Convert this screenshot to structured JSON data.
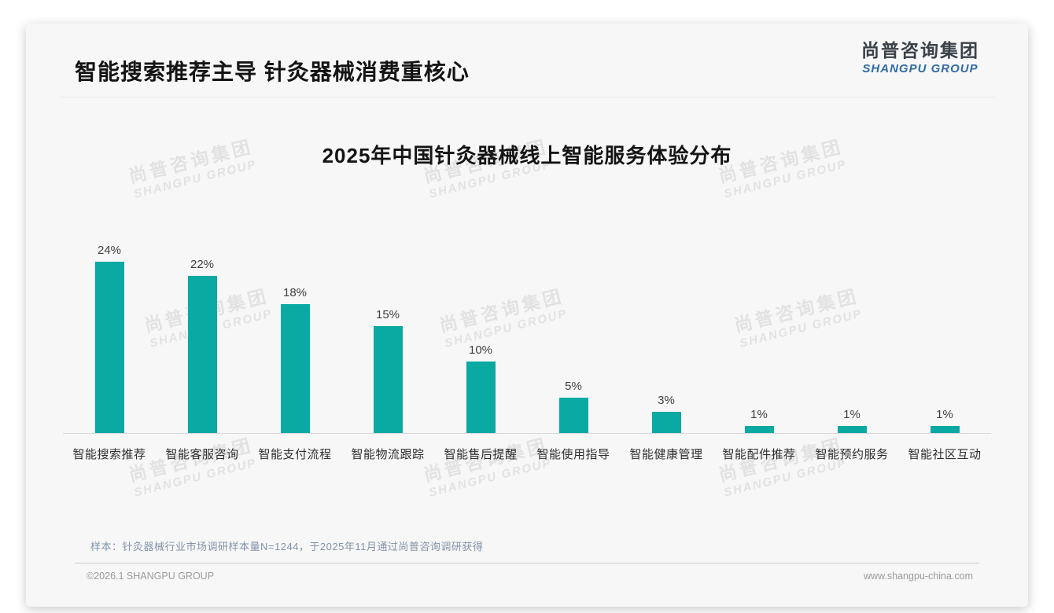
{
  "header": {
    "title": "智能搜索推荐主导 针灸器械消费重核心",
    "logo_cn": "尚普咨询集团",
    "logo_en": "SHANGPU GROUP"
  },
  "chart_data": {
    "type": "bar",
    "title": "2025年中国针灸器械线上智能服务体验分布",
    "categories": [
      "智能搜索推荐",
      "智能客服咨询",
      "智能支付流程",
      "智能物流跟踪",
      "智能售后提醒",
      "智能使用指导",
      "智能健康管理",
      "智能配件推荐",
      "智能预约服务",
      "智能社区互动"
    ],
    "values": [
      24,
      22,
      18,
      15,
      10,
      5,
      3,
      1,
      1,
      1
    ],
    "value_labels": [
      "24%",
      "22%",
      "18%",
      "15%",
      "10%",
      "5%",
      "3%",
      "1%",
      "1%",
      "1%"
    ],
    "unit": "%",
    "ylim": [
      0,
      26
    ],
    "grid": false,
    "legend": false,
    "bar_color": "#0aa9a2",
    "axis_color": "#d9d9d9"
  },
  "watermark": {
    "line1": "尚普咨询集团",
    "line2": "SHANGPU GROUP"
  },
  "footnote": "样本：针灸器械行业市场调研样本量N=1244，于2025年11月通过尚普咨询调研获得",
  "footer": {
    "left": "©2026.1 SHANGPU GROUP",
    "right": "www.shangpu-china.com"
  },
  "colors": {
    "accent_teal": "#0aa9a2",
    "logo_blue": "#2f6ba8",
    "card_bg": "#f7f7f7",
    "footnote_blue_gray": "#8293a9"
  }
}
